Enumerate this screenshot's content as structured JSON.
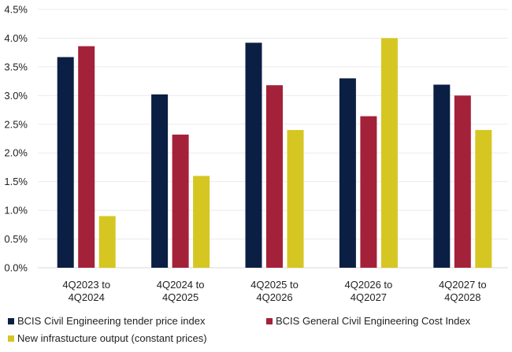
{
  "chart_data": {
    "type": "bar",
    "title": "",
    "xlabel": "",
    "ylabel": "",
    "ylim": [
      0,
      4.5
    ],
    "yticks": [
      "0.0%",
      "0.5%",
      "1.0%",
      "1.5%",
      "2.0%",
      "2.5%",
      "3.0%",
      "3.5%",
      "4.0%",
      "4.5%"
    ],
    "ytick_values": [
      0,
      0.5,
      1.0,
      1.5,
      2.0,
      2.5,
      3.0,
      3.5,
      4.0,
      4.5
    ],
    "grid": true,
    "legend_position": "bottom",
    "categories": [
      [
        "4Q2023 to",
        "4Q2024"
      ],
      [
        "4Q2024 to",
        "4Q2025"
      ],
      [
        "4Q2025 to",
        "4Q2026"
      ],
      [
        "4Q2026 to",
        "4Q2027"
      ],
      [
        "4Q2027 to",
        "4Q2028"
      ]
    ],
    "series": [
      {
        "name": "BCIS Civil Engineering tender price index",
        "color": "#0b1f44",
        "values": [
          3.67,
          3.02,
          3.92,
          3.3,
          3.19
        ]
      },
      {
        "name": "BCIS General Civil Engineering Cost Index",
        "color": "#a4213a",
        "values": [
          3.86,
          2.32,
          3.18,
          2.64,
          3.0
        ]
      },
      {
        "name": "New infrastucture output (constant prices)",
        "color": "#d6c622",
        "values": [
          0.9,
          1.6,
          2.4,
          4.0,
          2.4
        ]
      }
    ]
  }
}
